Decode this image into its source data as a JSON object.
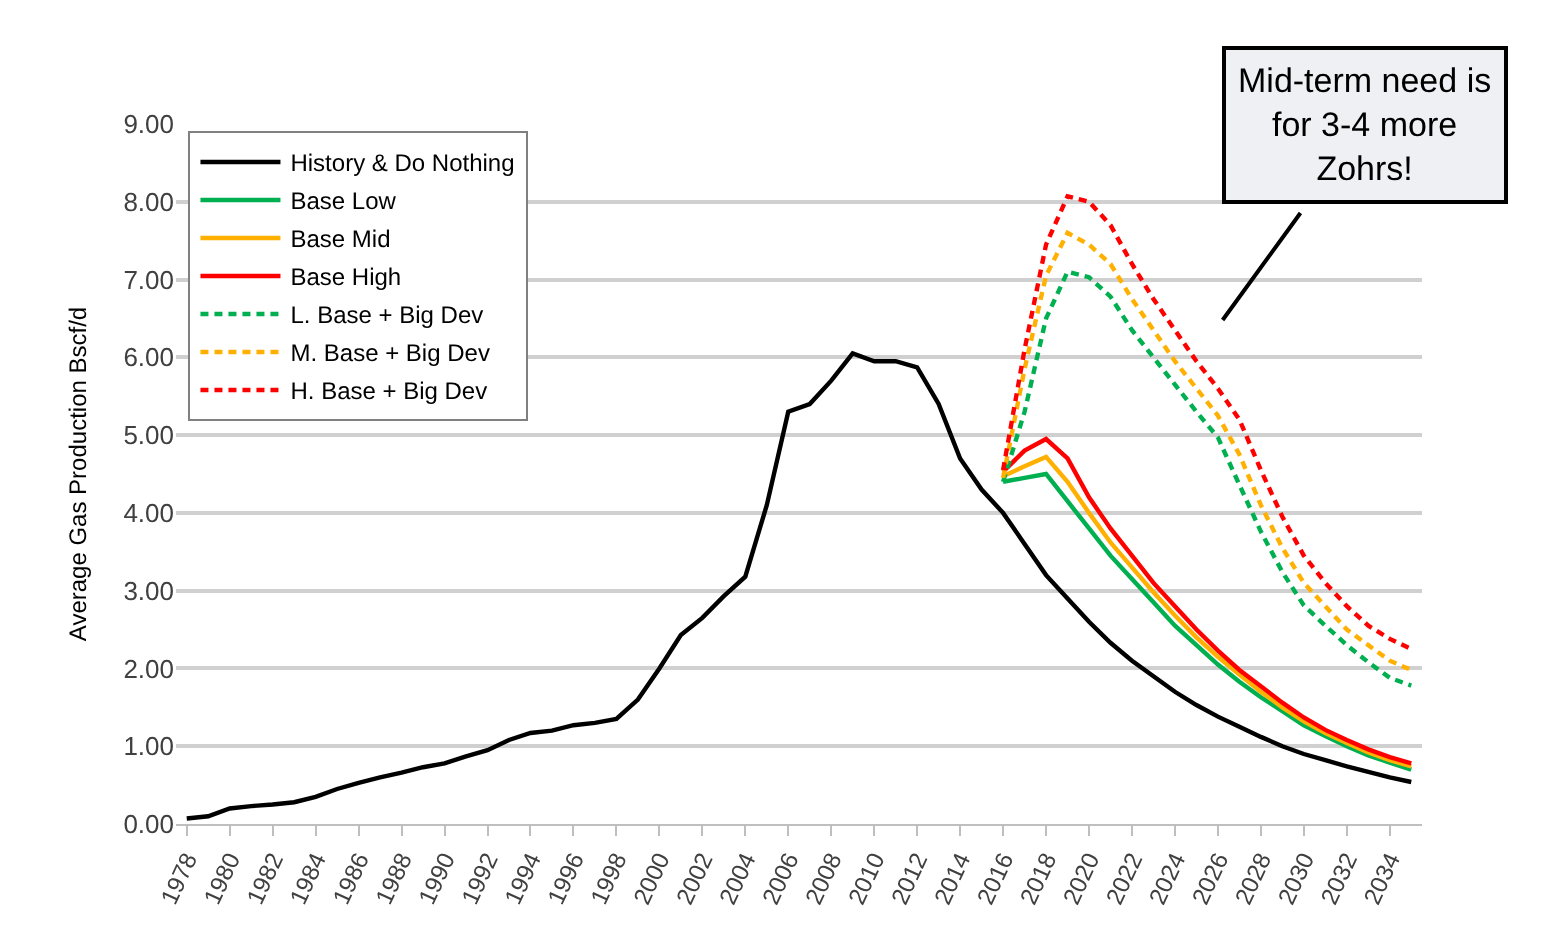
{
  "chart_data": {
    "type": "line",
    "ylabel": "Average Gas Production Bscf/d",
    "x": [
      1978,
      1979,
      1980,
      1981,
      1982,
      1983,
      1984,
      1985,
      1986,
      1987,
      1988,
      1989,
      1990,
      1991,
      1992,
      1993,
      1994,
      1995,
      1996,
      1997,
      1998,
      1999,
      2000,
      2001,
      2002,
      2003,
      2004,
      2005,
      2006,
      2007,
      2008,
      2009,
      2010,
      2011,
      2012,
      2013,
      2014,
      2015,
      2016,
      2017,
      2018,
      2019,
      2020,
      2021,
      2022,
      2023,
      2024,
      2025,
      2026,
      2027,
      2028,
      2029,
      2030,
      2031,
      2032,
      2033,
      2034,
      2035
    ],
    "series": [
      {
        "name": "History & Do Nothing",
        "color": "#000000",
        "values": [
          0.07,
          0.1,
          0.2,
          0.23,
          0.25,
          0.28,
          0.35,
          0.45,
          0.53,
          0.6,
          0.66,
          0.73,
          0.78,
          0.87,
          0.95,
          1.08,
          1.17,
          1.2,
          1.27,
          1.3,
          1.35,
          1.6,
          2.0,
          2.43,
          2.65,
          2.93,
          3.18,
          4.1,
          5.3,
          5.4,
          5.7,
          6.05,
          5.95,
          5.95,
          5.87,
          5.4,
          4.7,
          4.3,
          4.0,
          3.6,
          3.2,
          2.9,
          2.6,
          2.33,
          2.1,
          1.9,
          1.7,
          1.53,
          1.38,
          1.25,
          1.12,
          1.0,
          0.9,
          0.82,
          0.74,
          0.67,
          0.6,
          0.54
        ]
      },
      {
        "name": "Base Low",
        "color": "#00b050",
        "x": [
          2016,
          2017,
          2018,
          2019,
          2020,
          2021,
          2022,
          2023,
          2024,
          2025,
          2026,
          2027,
          2028,
          2029,
          2030,
          2031,
          2032,
          2033,
          2034,
          2035
        ],
        "values": [
          4.4,
          4.45,
          4.5,
          4.15,
          3.8,
          3.45,
          3.15,
          2.85,
          2.55,
          2.3,
          2.05,
          1.83,
          1.63,
          1.45,
          1.27,
          1.13,
          1.0,
          0.88,
          0.79,
          0.7
        ]
      },
      {
        "name": "Base Mid",
        "color": "#ffb000",
        "x": [
          2016,
          2017,
          2018,
          2019,
          2020,
          2021,
          2022,
          2023,
          2024,
          2025,
          2026,
          2027,
          2028,
          2029,
          2030,
          2031,
          2032,
          2033,
          2034,
          2035
        ],
        "values": [
          4.47,
          4.6,
          4.72,
          4.4,
          4.0,
          3.62,
          3.3,
          2.98,
          2.68,
          2.4,
          2.15,
          1.92,
          1.7,
          1.5,
          1.32,
          1.17,
          1.04,
          0.92,
          0.82,
          0.74
        ]
      },
      {
        "name": "Base High",
        "color": "#ff0000",
        "x": [
          2016,
          2017,
          2018,
          2019,
          2020,
          2021,
          2022,
          2023,
          2024,
          2025,
          2026,
          2027,
          2028,
          2029,
          2030,
          2031,
          2032,
          2033,
          2034,
          2035
        ],
        "values": [
          4.53,
          4.8,
          4.95,
          4.7,
          4.2,
          3.8,
          3.45,
          3.1,
          2.8,
          2.5,
          2.23,
          1.98,
          1.77,
          1.56,
          1.37,
          1.21,
          1.08,
          0.96,
          0.86,
          0.78
        ]
      },
      {
        "name": "L. Base + Big Dev",
        "color": "#00b050",
        "line_style": "dashed",
        "x": [
          2016,
          2017,
          2018,
          2019,
          2020,
          2021,
          2022,
          2023,
          2024,
          2025,
          2026,
          2027,
          2028,
          2029,
          2030,
          2031,
          2032,
          2033,
          2034,
          2035
        ],
        "values": [
          4.4,
          5.3,
          6.5,
          7.1,
          7.03,
          6.78,
          6.35,
          6.0,
          5.65,
          5.3,
          4.97,
          4.36,
          3.76,
          3.24,
          2.81,
          2.55,
          2.3,
          2.08,
          1.88,
          1.78
        ]
      },
      {
        "name": "M. Base + Big Dev",
        "color": "#ffb000",
        "line_style": "dashed",
        "x": [
          2016,
          2017,
          2018,
          2019,
          2020,
          2021,
          2022,
          2023,
          2024,
          2025,
          2026,
          2027,
          2028,
          2029,
          2030,
          2031,
          2032,
          2033,
          2034,
          2035
        ],
        "values": [
          4.45,
          5.85,
          7.05,
          7.6,
          7.45,
          7.2,
          6.75,
          6.35,
          5.95,
          5.6,
          5.25,
          4.75,
          4.1,
          3.55,
          3.1,
          2.8,
          2.5,
          2.3,
          2.1,
          1.98
        ]
      },
      {
        "name": "H. Base + Big Dev",
        "color": "#ff0000",
        "line_style": "dashed",
        "x": [
          2016,
          2017,
          2018,
          2019,
          2020,
          2021,
          2022,
          2023,
          2024,
          2025,
          2026,
          2027,
          2028,
          2029,
          2030,
          2031,
          2032,
          2033,
          2034,
          2035
        ],
        "values": [
          4.55,
          6.1,
          7.45,
          8.07,
          8.0,
          7.7,
          7.2,
          6.75,
          6.35,
          5.95,
          5.6,
          5.2,
          4.55,
          3.95,
          3.45,
          3.1,
          2.8,
          2.55,
          2.38,
          2.25
        ]
      }
    ],
    "xlim": [
      1977.5,
      2035.5
    ],
    "xticks": [
      1978,
      1980,
      1982,
      1984,
      1986,
      1988,
      1990,
      1992,
      1994,
      1996,
      1998,
      2000,
      2002,
      2004,
      2006,
      2008,
      2010,
      2012,
      2014,
      2016,
      2018,
      2020,
      2022,
      2024,
      2026,
      2028,
      2030,
      2032,
      2034
    ],
    "ylim": [
      0,
      9
    ],
    "yticks": [
      {
        "value": 0,
        "label": "0.00"
      },
      {
        "value": 1,
        "label": "1.00"
      },
      {
        "value": 2,
        "label": "2.00"
      },
      {
        "value": 3,
        "label": "3.00"
      },
      {
        "value": 4,
        "label": "4.00"
      },
      {
        "value": 5,
        "label": "5.00"
      },
      {
        "value": 6,
        "label": "6.00"
      },
      {
        "value": 7,
        "label": "7.00"
      },
      {
        "value": 8,
        "label": "8.00"
      },
      {
        "value": 9,
        "label": "9.00"
      }
    ],
    "grid": "y",
    "legend": "top left",
    "line_style": "solid",
    "marker": "none",
    "annotations": [
      "Mid-term need is\nfor 3-4 more\nZohrs!"
    ]
  }
}
